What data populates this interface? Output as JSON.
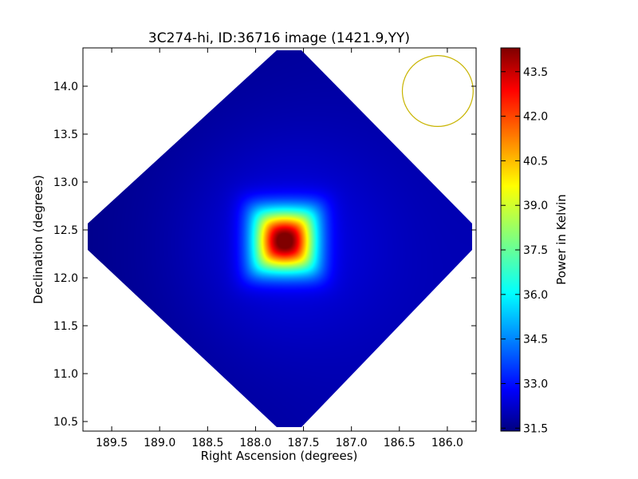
{
  "chart_data": {
    "type": "heatmap",
    "title": "3C274-hi, ID:36716 image (1421.9,YY)",
    "xlabel": "Right Ascension (degrees)",
    "ylabel": "Declination (degrees)",
    "x_inverted": true,
    "xlim": [
      189.8,
      185.7
    ],
    "ylim": [
      10.4,
      14.4
    ],
    "xticks": [
      189.5,
      189.0,
      188.5,
      188.0,
      187.5,
      187.0,
      186.5,
      186.0
    ],
    "xtick_labels": [
      "189.5",
      "189.0",
      "188.5",
      "188.0",
      "187.5",
      "187.0",
      "186.5",
      "186.0"
    ],
    "yticks": [
      10.5,
      11.0,
      11.5,
      12.0,
      12.5,
      13.0,
      13.5,
      14.0
    ],
    "ytick_labels": [
      "10.5",
      "11.0",
      "11.5",
      "12.0",
      "12.5",
      "13.0",
      "13.5",
      "14.0"
    ],
    "colorbar": {
      "label": "Power in Kelvin",
      "colormap": "jet",
      "range": [
        31.4,
        44.3
      ],
      "ticks": [
        31.5,
        33.0,
        34.5,
        36.0,
        37.5,
        39.0,
        40.5,
        42.0,
        43.5
      ],
      "tick_labels": [
        "31.5",
        "33.0",
        "34.5",
        "36.0",
        "37.5",
        "39.0",
        "40.5",
        "42.0",
        "43.5"
      ]
    },
    "map": {
      "footprint": "diamond",
      "center_ra": 187.75,
      "center_dec": 12.4,
      "half_diagonal_ra": 2.05,
      "half_diagonal_dec": 1.98,
      "background_value": 31.9,
      "peak": {
        "ra": 187.7,
        "dec": 12.39,
        "value": 44.2
      }
    },
    "beam_circle": {
      "ra": 186.1,
      "dec": 13.95,
      "radius_deg": 0.37,
      "color": "#c8b400"
    },
    "grid": false
  }
}
